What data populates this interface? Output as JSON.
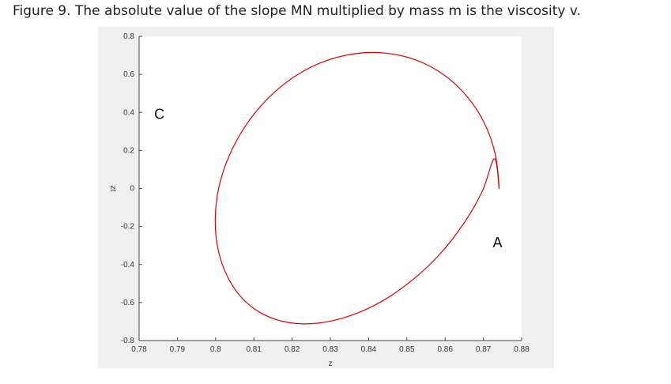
{
  "caption": {
    "label": "Figure 9",
    "text": ". The absolute value of the slope MN multiplied by mass m is the viscosity v."
  },
  "chart_data": {
    "type": "line",
    "title": "",
    "xlabel": "z",
    "ylabel": "zt",
    "xlim": [
      0.78,
      0.88
    ],
    "ylim": [
      -0.8,
      0.8
    ],
    "x_ticks": [
      "0.78",
      "0.79",
      "0.8",
      "0.81",
      "0.82",
      "0.83",
      "0.84",
      "0.85",
      "0.86",
      "0.87",
      "0.88"
    ],
    "y_ticks": [
      "0.8",
      "0.6",
      "0.4",
      "0.2",
      "0",
      "-0.2",
      "-0.4",
      "-0.6",
      "-0.8"
    ],
    "grid": false,
    "series_color": "#e00000",
    "series": [
      {
        "x": [
          0.8741,
          0.8731,
          0.8702,
          0.8655,
          0.8595,
          0.8523,
          0.8444,
          0.8362,
          0.828,
          0.8203,
          0.8135,
          0.8078,
          0.8035,
          0.8008,
          0.7999,
          0.8007,
          0.8032,
          0.8072,
          0.8126,
          0.8193,
          0.8269,
          0.8351,
          0.8434,
          0.8513,
          0.8586,
          0.8648,
          0.8697,
          0.8729,
          0.8741
        ],
        "y": [
          0.0,
          0.18,
          0.346,
          0.489,
          0.6,
          0.676,
          0.712,
          0.708,
          0.665,
          0.584,
          0.47,
          0.329,
          0.17,
          0.002,
          -0.167,
          -0.327,
          -0.468,
          -0.583,
          -0.663,
          -0.706,
          -0.708,
          -0.67,
          -0.594,
          -0.484,
          -0.346,
          -0.186,
          -0.015,
          0.157,
          0.0
        ]
      }
    ],
    "annotations": [
      {
        "text": "C",
        "x": 0.7853,
        "y": 0.365
      },
      {
        "text": "A",
        "x": 0.8737,
        "y": -0.31
      }
    ]
  }
}
